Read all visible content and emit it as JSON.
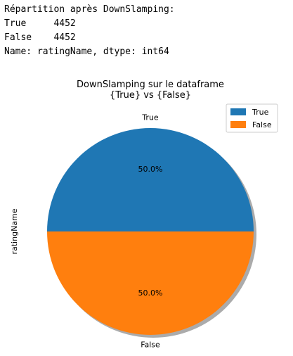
{
  "console_output": {
    "line1": "Répartition après DownSlamping:",
    "line2": "True     4452",
    "line3": "False    4452",
    "line4": "Name: ratingName, dtype: int64"
  },
  "chart_data": {
    "type": "pie",
    "title": "DownSlamping sur le dataframe\n{True} vs {False}",
    "title_line1": "DownSlamping sur le dataframe",
    "title_line2": "{True} vs {False}",
    "ylabel": "ratingName",
    "labels": [
      "True",
      "False"
    ],
    "values": [
      4452,
      4452
    ],
    "percent_labels": [
      "50.0%",
      "50.0%"
    ],
    "colors": [
      "#1f77b4",
      "#ff7f0e"
    ],
    "shadow": true,
    "legend": {
      "placement": "top-right",
      "entries": [
        "True",
        "False"
      ]
    }
  }
}
